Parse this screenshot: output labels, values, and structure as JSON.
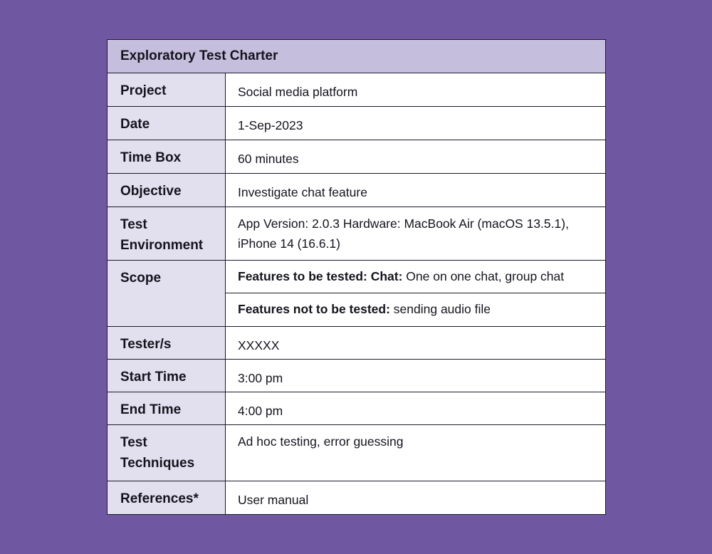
{
  "title": "Exploratory Test Charter",
  "rows": [
    {
      "label": "Project",
      "value": "Social media platform"
    },
    {
      "label": "Date",
      "value": "1-Sep-2023"
    },
    {
      "label": "Time Box",
      "value": "60 minutes"
    },
    {
      "label": "Objective",
      "value": "Investigate chat feature"
    },
    {
      "label": "Test Environment",
      "value": "App Version: 2.0.3 Hardware: MacBook Air (macOS 13.5.1), iPhone 14 (16.6.1)"
    },
    {
      "label": "Tester/s",
      "value": "XXXXX"
    },
    {
      "label": "Start Time",
      "value": "3:00 pm"
    },
    {
      "label": "End Time",
      "value": "4:00 pm"
    },
    {
      "label": "Test Techniques",
      "value": "Ad hoc testing, error guessing"
    },
    {
      "label": "References*",
      "value": "User manual"
    }
  ],
  "scope": {
    "label": "Scope",
    "in_bold": "Features to be tested: Chat:",
    "in_text": " One on one chat, group chat",
    "out_bold": "Features not to be tested:",
    "out_text": " sending audio file"
  }
}
